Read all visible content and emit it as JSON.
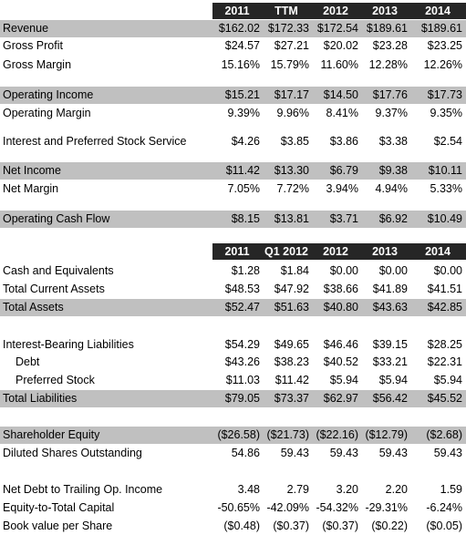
{
  "table1": {
    "header": [
      "2011",
      "TTM",
      "2012",
      "2013",
      "2014"
    ],
    "rows": [
      {
        "label": "Revenue",
        "values": [
          "$162.02",
          "$172.33",
          "$172.54",
          "$189.61",
          "$189.61"
        ]
      },
      {
        "label": "Gross Profit",
        "values": [
          "$24.57",
          "$27.21",
          "$20.02",
          "$23.28",
          "$23.25"
        ]
      },
      {
        "label": "Gross Margin",
        "values": [
          "15.16%",
          "15.79%",
          "11.60%",
          "12.28%",
          "12.26%"
        ]
      },
      {
        "label": "Operating Income",
        "values": [
          "$15.21",
          "$17.17",
          "$14.50",
          "$17.76",
          "$17.73"
        ]
      },
      {
        "label": "Operating Margin",
        "values": [
          "9.39%",
          "9.96%",
          "8.41%",
          "9.37%",
          "9.35%"
        ]
      },
      {
        "label": "Interest and Preferred Stock Service",
        "values": [
          "$4.26",
          "$3.85",
          "$3.86",
          "$3.38",
          "$2.54"
        ]
      },
      {
        "label": "Net Income",
        "values": [
          "$11.42",
          "$13.30",
          "$6.79",
          "$9.38",
          "$10.11"
        ]
      },
      {
        "label": "Net Margin",
        "values": [
          "7.05%",
          "7.72%",
          "3.94%",
          "4.94%",
          "5.33%"
        ]
      },
      {
        "label": "Operating Cash Flow",
        "values": [
          "$8.15",
          "$13.81",
          "$3.71",
          "$6.92",
          "$10.49"
        ]
      }
    ]
  },
  "table2": {
    "header": [
      "2011",
      "Q1 2012",
      "2012",
      "2013",
      "2014"
    ],
    "rows": [
      {
        "label": "Cash and Equivalents",
        "values": [
          "$1.28",
          "$1.84",
          "$0.00",
          "$0.00",
          "$0.00"
        ]
      },
      {
        "label": "Total Current Assets",
        "values": [
          "$48.53",
          "$47.92",
          "$38.66",
          "$41.89",
          "$41.51"
        ]
      },
      {
        "label": "Total Assets",
        "values": [
          "$52.47",
          "$51.63",
          "$40.80",
          "$43.63",
          "$42.85"
        ]
      },
      {
        "label": "Interest-Bearing Liabilities",
        "values": [
          "$54.29",
          "$49.65",
          "$46.46",
          "$39.15",
          "$28.25"
        ]
      },
      {
        "label": "Debt",
        "values": [
          "$43.26",
          "$38.23",
          "$40.52",
          "$33.21",
          "$22.31"
        ]
      },
      {
        "label": "Preferred Stock",
        "values": [
          "$11.03",
          "$11.42",
          "$5.94",
          "$5.94",
          "$5.94"
        ]
      },
      {
        "label": "Total Liabilities",
        "values": [
          "$79.05",
          "$73.37",
          "$62.97",
          "$56.42",
          "$45.52"
        ]
      },
      {
        "label": "Shareholder Equity",
        "values": [
          "($26.58)",
          "($21.73)",
          "($22.16)",
          "($12.79)",
          "($2.68)"
        ]
      },
      {
        "label": "Diluted Shares Outstanding",
        "values": [
          "54.86",
          "59.43",
          "59.43",
          "59.43",
          "59.43"
        ]
      },
      {
        "label": "Net Debt to Trailing Op. Income",
        "values": [
          "3.48",
          "2.79",
          "3.20",
          "2.20",
          "1.59"
        ]
      },
      {
        "label": "Equity-to-Total Capital",
        "values": [
          "-50.65%",
          "-42.09%",
          "-54.32%",
          "-29.31%",
          "-6.24%"
        ]
      },
      {
        "label": "Book value per Share",
        "values": [
          "($0.48)",
          "($0.37)",
          "($0.37)",
          "($0.22)",
          "($0.05)"
        ]
      }
    ]
  }
}
